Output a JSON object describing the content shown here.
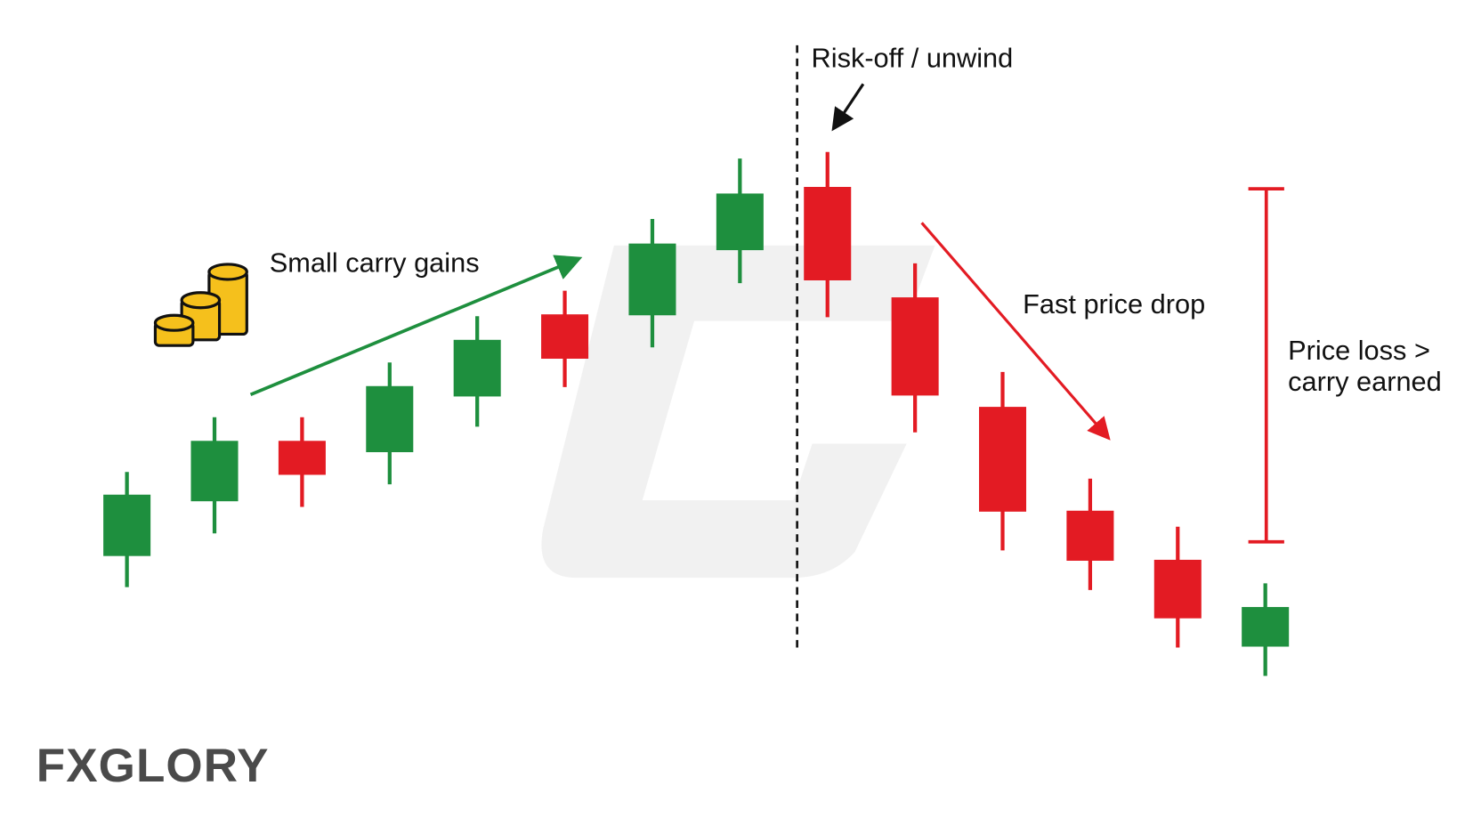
{
  "chart_data": {
    "type": "candlestick",
    "categories": [
      null,
      null,
      null,
      null,
      null,
      null,
      null,
      null,
      null,
      null,
      null,
      null,
      null,
      null
    ],
    "open": [
      17.1,
      22.9,
      29.3,
      28.1,
      34,
      42.7,
      42.6,
      49.5,
      56.2,
      44.5,
      32.9,
      21.9,
      16.7,
      7.5
    ],
    "high": [
      26,
      31.8,
      31.8,
      37.6,
      42.5,
      45.2,
      52.8,
      59.2,
      59.9,
      48.1,
      36.6,
      25.3,
      20.2,
      14.2
    ],
    "low": [
      13.8,
      19.5,
      22.3,
      24.7,
      30.8,
      35,
      39.2,
      46,
      42.4,
      30.2,
      17.7,
      13.5,
      7.4,
      4.4
    ],
    "close": [
      23.6,
      29.3,
      25.7,
      35.1,
      40,
      38,
      50.2,
      55.5,
      46.3,
      34.1,
      21.8,
      16.6,
      10.5,
      11.7
    ],
    "up_color": "#1e8f3e",
    "down_color": "#e31b23",
    "ylim": [
      0,
      76
    ],
    "annotations": {
      "gains": "Small carry gains",
      "risk_off": "Risk-off / unwind",
      "drop": "Fast price drop",
      "loss": [
        "Price loss >",
        "carry earned"
      ]
    }
  },
  "logo": "FXGLORY"
}
